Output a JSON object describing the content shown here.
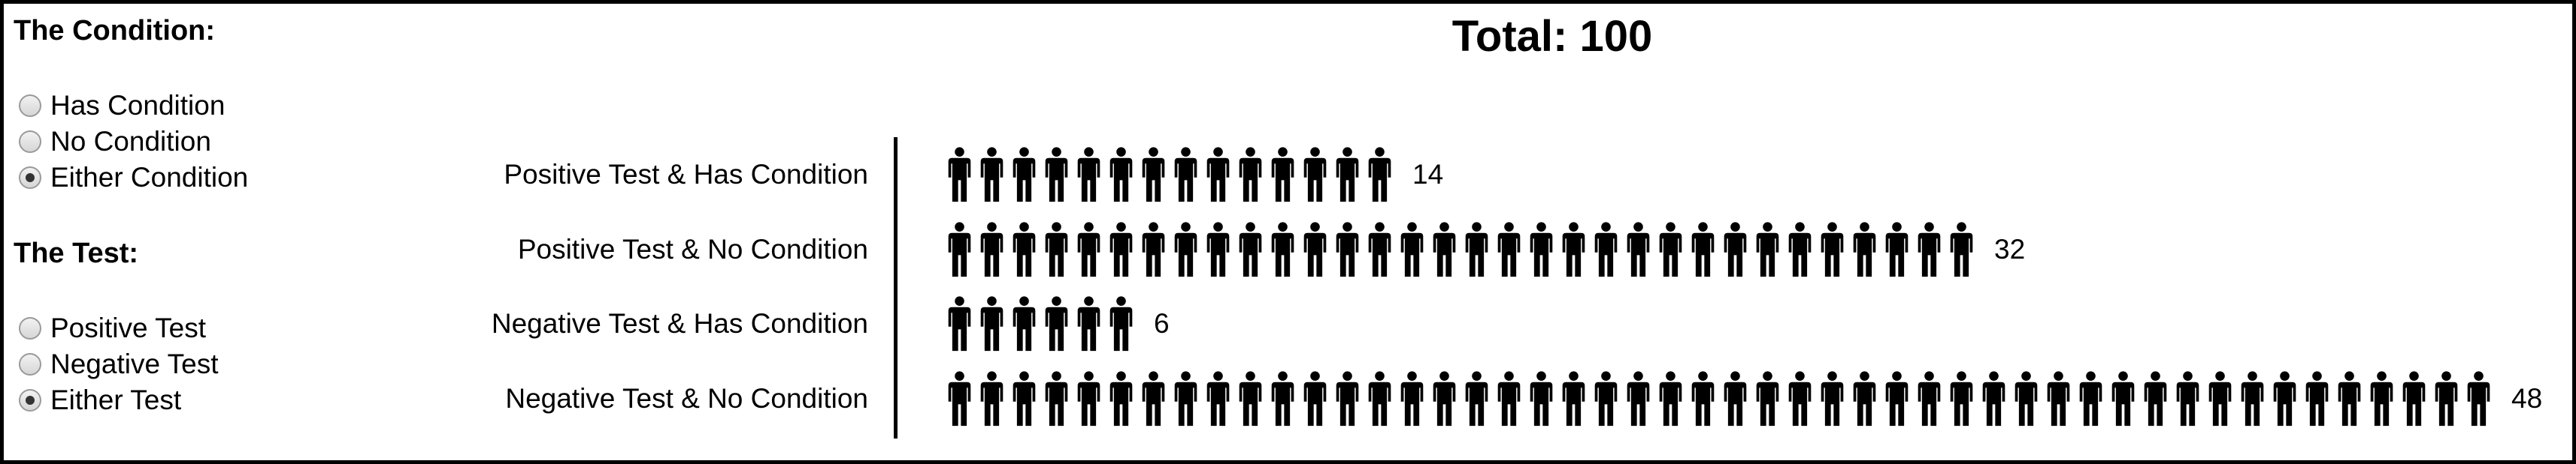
{
  "condition": {
    "heading": "The Condition:",
    "options": [
      {
        "label": "Has Condition",
        "checked": false
      },
      {
        "label": "No Condition",
        "checked": false
      },
      {
        "label": "Either Condition",
        "checked": true
      }
    ]
  },
  "test": {
    "heading": "The Test:",
    "options": [
      {
        "label": "Positive Test",
        "checked": false
      },
      {
        "label": "Negative Test",
        "checked": false
      },
      {
        "label": "Either Test",
        "checked": true
      }
    ]
  },
  "title": "Total: 100",
  "rows": [
    {
      "label": "Positive Test & Has Condition",
      "count": 14
    },
    {
      "label": "Positive Test & No Condition",
      "count": 32
    },
    {
      "label": "Negative Test & Has Condition",
      "count": 6
    },
    {
      "label": "Negative Test & No Condition",
      "count": 48
    }
  ],
  "icon": "person-icon",
  "colors": {
    "icon": "#000000",
    "radio_selected": "#333333"
  }
}
